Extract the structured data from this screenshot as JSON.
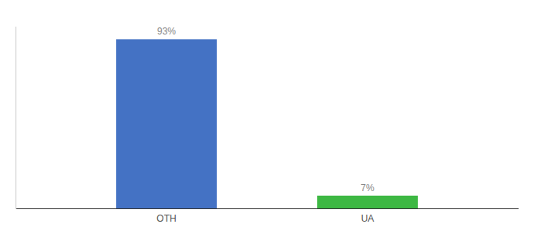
{
  "chart_data": {
    "type": "bar",
    "categories": [
      "OTH",
      "UA"
    ],
    "values": [
      93,
      7
    ],
    "value_labels": [
      "93%",
      "7%"
    ],
    "colors": [
      "#4472c4",
      "#3db843"
    ],
    "ylim": [
      0,
      100
    ],
    "grid": false,
    "data_labels": true,
    "tick_labels": "x"
  }
}
